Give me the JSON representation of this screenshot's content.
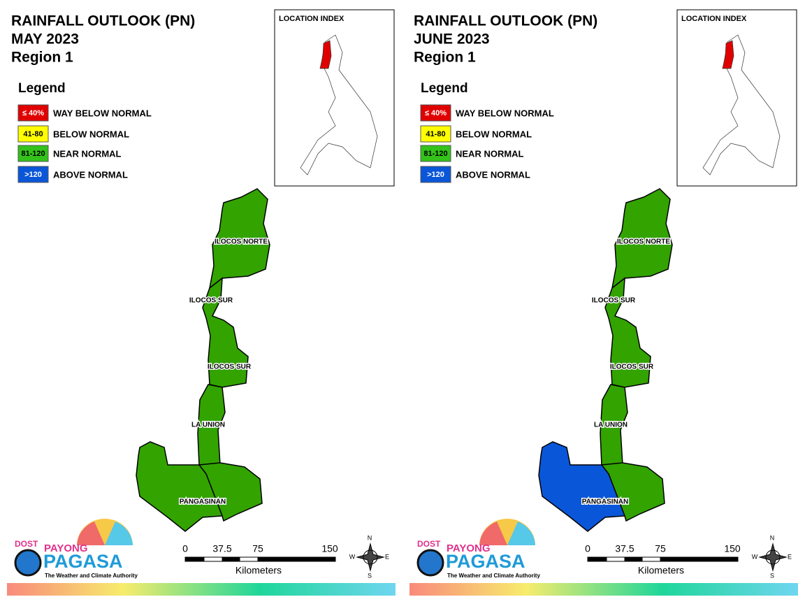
{
  "panels": [
    {
      "title": "RAINFALL OUTLOOK (PN)",
      "period": "MAY 2023",
      "region": "Region 1",
      "region_fill": "#33a300",
      "pangasinan_west_fill": "#33a300"
    },
    {
      "title": "RAINFALL OUTLOOK (PN)",
      "period": "JUNE 2023",
      "region": "Region 1",
      "region_fill": "#33a300",
      "pangasinan_west_fill": "#0a56d8"
    }
  ],
  "legend_title": "Legend",
  "legend": [
    {
      "swatch": "≤ 40%",
      "label": "WAY BELOW NORMAL",
      "color": "#e00000",
      "text_color": "#ffffff"
    },
    {
      "swatch": "41-80",
      "label": "BELOW NORMAL",
      "color": "#ffff00",
      "text_color": "#000000"
    },
    {
      "swatch": "81-120",
      "label": "NEAR NORMAL",
      "color": "#33c21a",
      "text_color": "#000000"
    },
    {
      "swatch": ">120",
      "label": "ABOVE NORMAL",
      "color": "#0a56d8",
      "text_color": "#ffffff"
    }
  ],
  "inset_title": "LOCATION INDEX",
  "province_labels": [
    "ILOCOS NORTE",
    "ILOCOS SUR",
    "ILOCOS SUR",
    "LA UNION",
    "PANGASINAN"
  ],
  "scale_labels": [
    "0",
    "37.5",
    "75",
    "150"
  ],
  "scale_unit": "Kilometers",
  "compass": [
    "N",
    "E",
    "S",
    "W"
  ],
  "logo": {
    "agency": "DOST",
    "brand_top": "PAYONG",
    "brand": "PAGASA",
    "tagline": "The Weather and Climate Authority"
  }
}
